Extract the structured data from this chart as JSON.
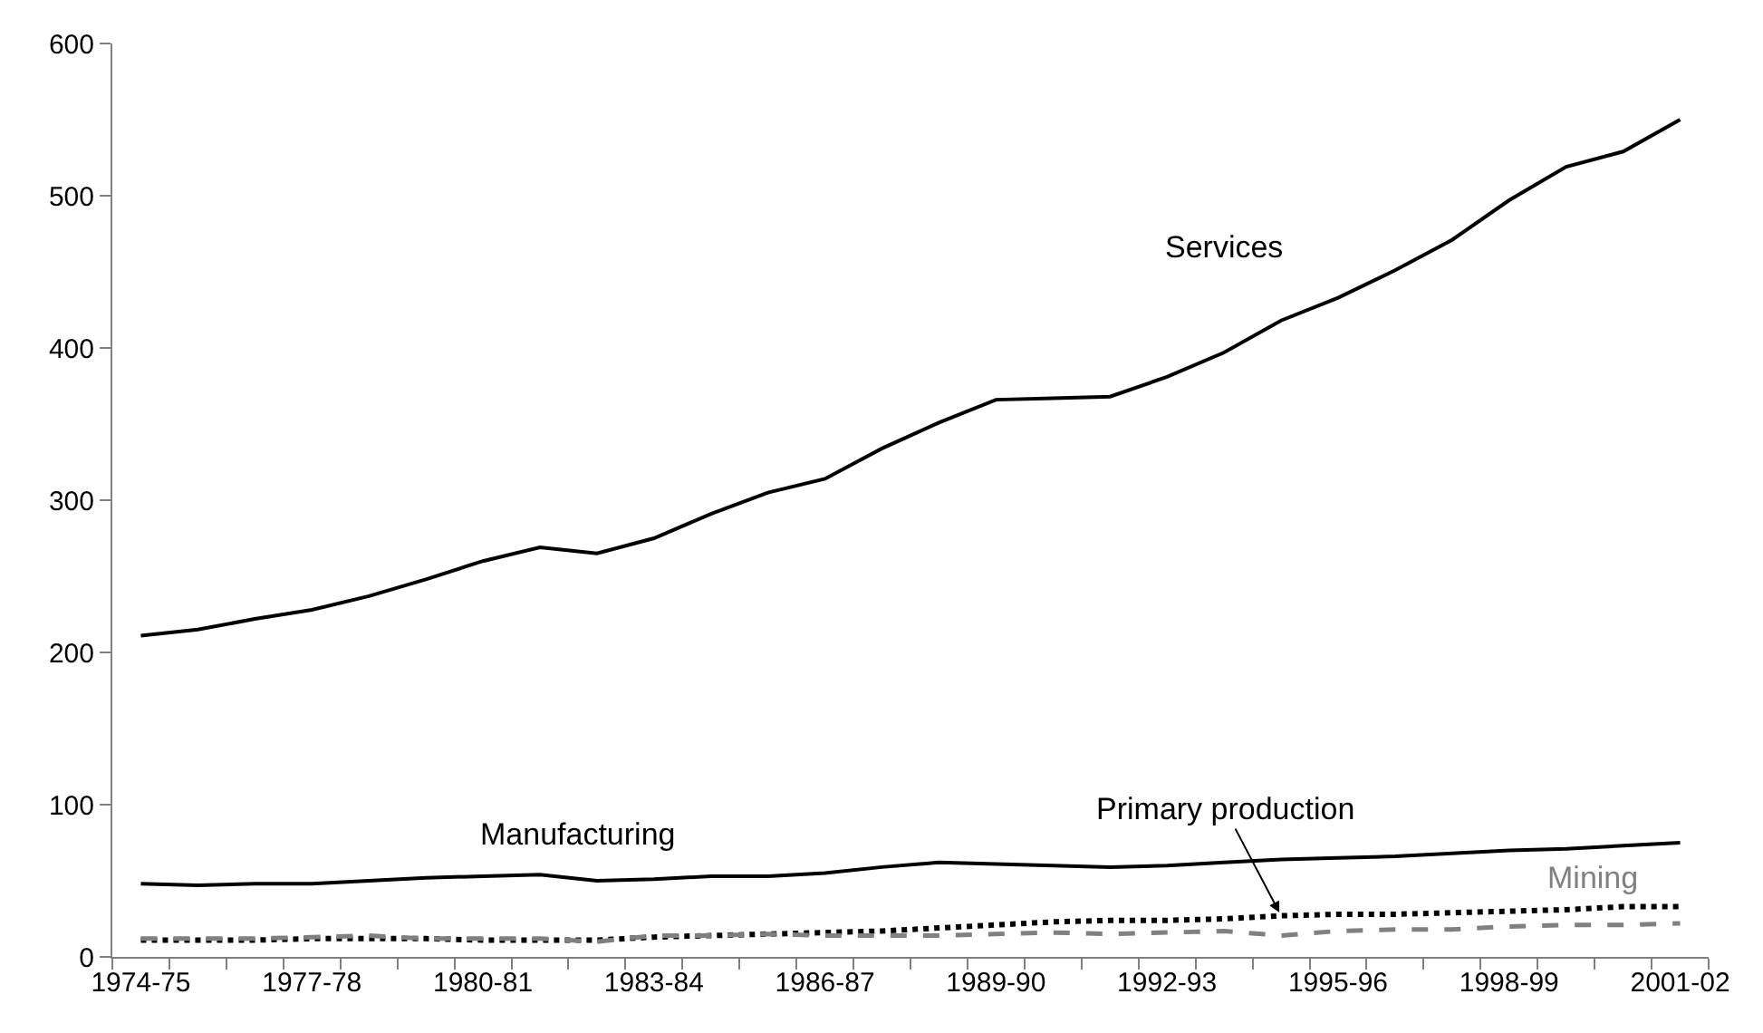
{
  "chart_data": {
    "type": "line",
    "categories": [
      "1974-75",
      null,
      null,
      "1977-78",
      null,
      null,
      "1980-81",
      null,
      null,
      "1983-84",
      null,
      null,
      "1986-87",
      null,
      null,
      "1989-90",
      null,
      null,
      "1992-93",
      null,
      null,
      "1995-96",
      null,
      null,
      "1998-99",
      null,
      null,
      "2001-02"
    ],
    "series": [
      {
        "name": "Services",
        "color": "#000000",
        "line_style": "solid",
        "values": [
          211,
          215,
          222,
          228,
          237,
          248,
          260,
          269,
          265,
          275,
          291,
          305,
          314,
          334,
          351,
          366,
          367,
          368,
          381,
          397,
          418,
          433,
          451,
          471,
          497,
          519,
          529,
          550
        ]
      },
      {
        "name": "Manufacturing",
        "color": "#000000",
        "line_style": "solid",
        "values": [
          48,
          47,
          48,
          48,
          50,
          52,
          53,
          54,
          50,
          51,
          53,
          53,
          55,
          59,
          62,
          61,
          60,
          59,
          60,
          62,
          64,
          65,
          66,
          68,
          70,
          71,
          73,
          75
        ]
      },
      {
        "name": "Primary production",
        "color": "#000000",
        "line_style": "dotted",
        "values": [
          11,
          11,
          11,
          12,
          12,
          12,
          11,
          11,
          11,
          13,
          14,
          15,
          16,
          17,
          19,
          21,
          23,
          24,
          24,
          25,
          27,
          28,
          28,
          29,
          30,
          31,
          33,
          33
        ]
      },
      {
        "name": "Mining",
        "color": "#808080",
        "line_style": "dashed",
        "values": [
          12,
          12,
          12,
          13,
          14,
          12,
          12,
          12,
          10,
          14,
          14,
          15,
          14,
          14,
          14,
          15,
          16,
          15,
          16,
          17,
          14,
          17,
          18,
          18,
          20,
          21,
          21,
          22
        ]
      }
    ],
    "ylim": [
      0,
      600
    ],
    "yticks": [
      0,
      100,
      200,
      300,
      400,
      500,
      600
    ],
    "legend": false
  }
}
